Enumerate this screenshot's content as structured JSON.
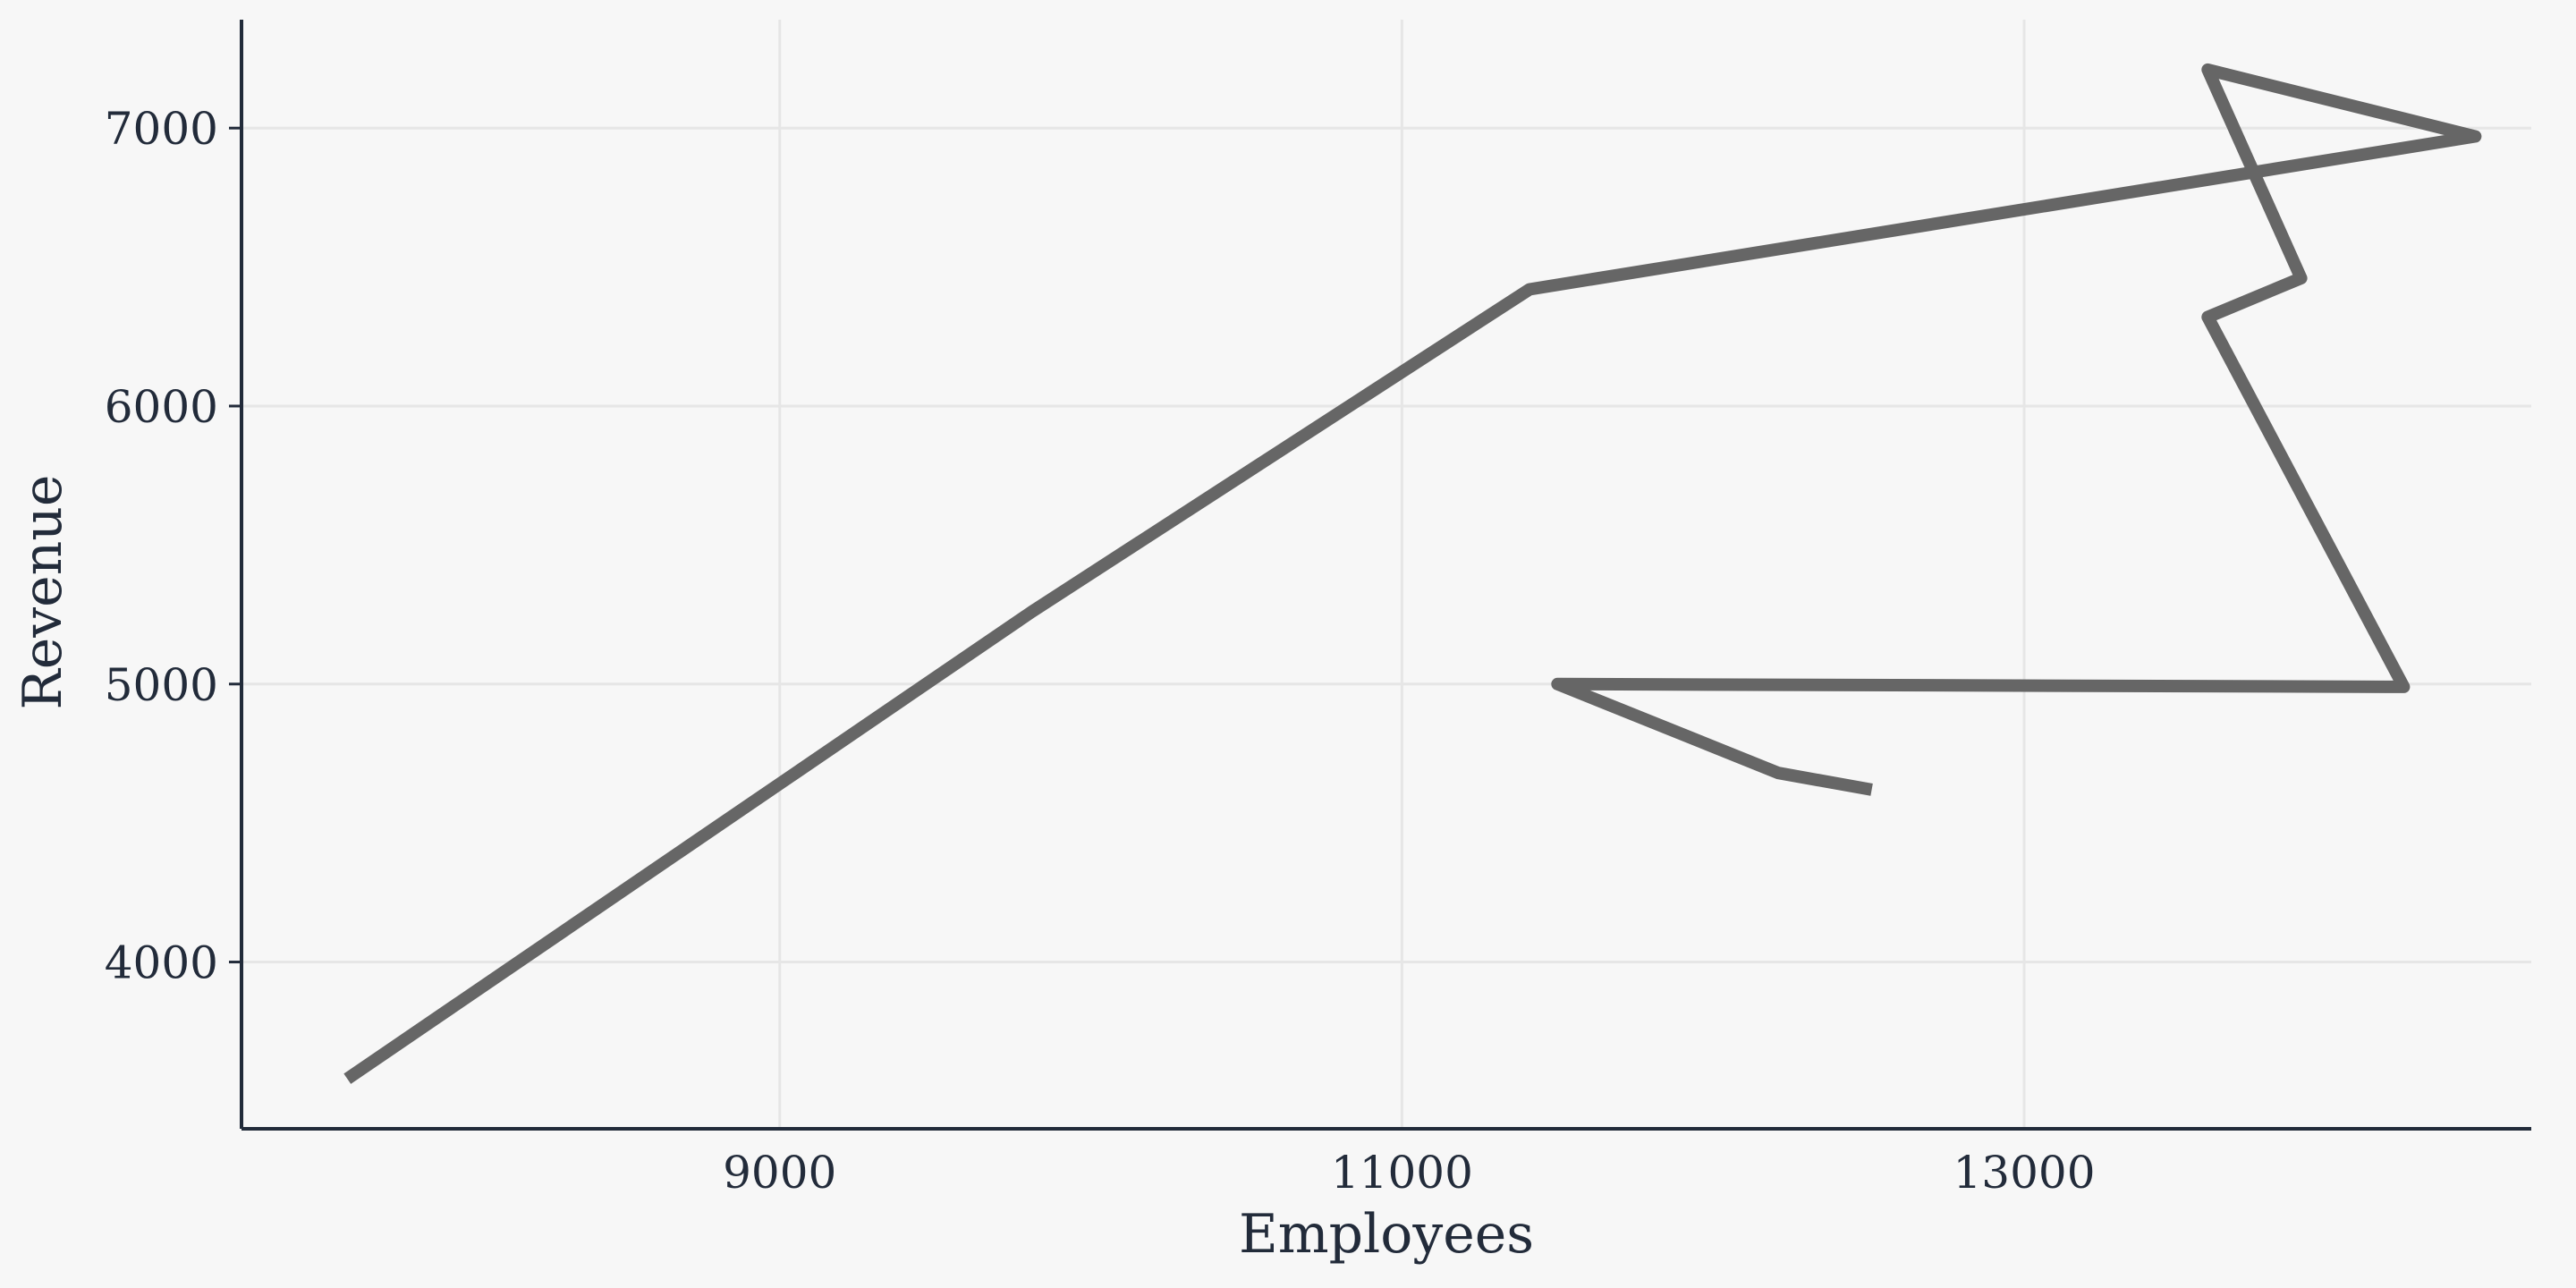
{
  "chart_data": {
    "type": "line",
    "xlabel": "Employees",
    "ylabel": "Revenue",
    "xlim": [
      7270,
      14630
    ],
    "ylim": [
      3400,
      7390
    ],
    "x_ticks": [
      9000,
      11000,
      13000
    ],
    "y_ticks": [
      4000,
      5000,
      6000,
      7000
    ],
    "x_tick_labels": [
      "9000",
      "11000",
      "13000"
    ],
    "y_tick_labels": [
      "4000",
      "5000",
      "6000",
      "7000"
    ],
    "grid": true,
    "series": [
      {
        "color": "#666666",
        "points": [
          {
            "x": 7610,
            "y": 3580
          },
          {
            "x": 9810,
            "y": 5260
          },
          {
            "x": 11410,
            "y": 6420
          },
          {
            "x": 14450,
            "y": 6970
          },
          {
            "x": 13590,
            "y": 7210
          },
          {
            "x": 13890,
            "y": 6460
          },
          {
            "x": 13590,
            "y": 6320
          },
          {
            "x": 14220,
            "y": 4990
          },
          {
            "x": 11500,
            "y": 5000
          },
          {
            "x": 12210,
            "y": 4680
          },
          {
            "x": 12510,
            "y": 4620
          }
        ]
      }
    ]
  }
}
